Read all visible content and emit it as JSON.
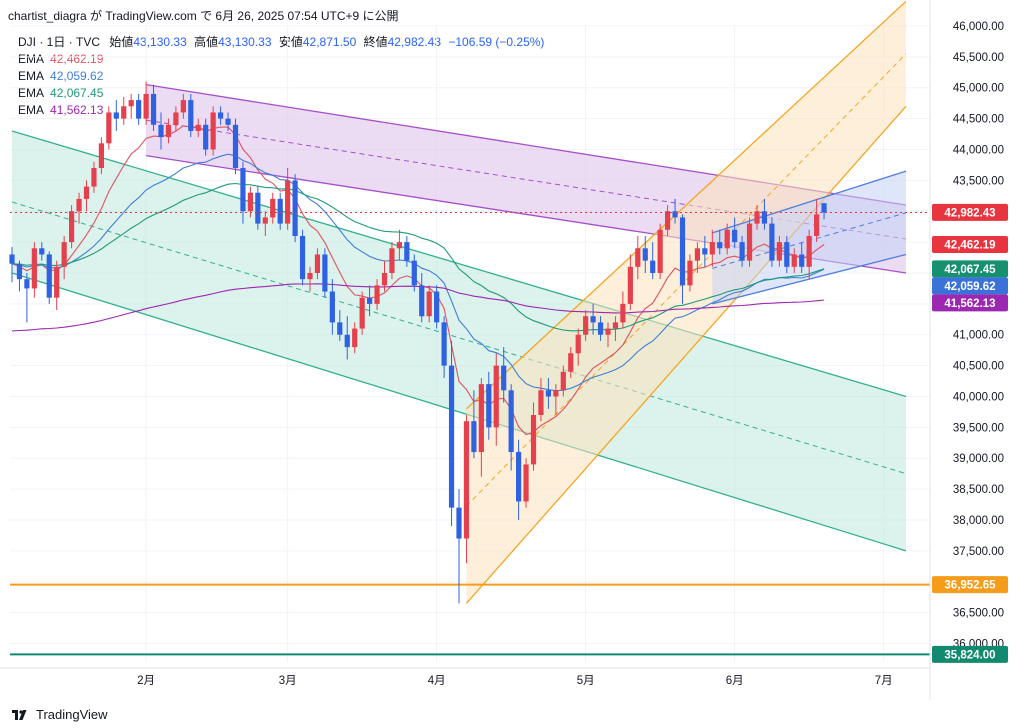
{
  "header": {
    "text": "chartist_diagra が TradingView.com で 6月 26, 2025 07:54 UTC+9 に公開"
  },
  "legend": {
    "symbol": "DJI · 1日 · TVC",
    "open_label": "始値",
    "open": "43,130.33",
    "high_label": "高値",
    "high": "43,130.33",
    "low_label": "安値",
    "low": "42,871.50",
    "close_label": "終値",
    "close": "42,982.43",
    "change": "−106.59 (−0.25%)",
    "emas": [
      {
        "label": "EMA",
        "value": "42,462.19",
        "color": "#e05262"
      },
      {
        "label": "EMA",
        "value": "42,059.62",
        "color": "#3f7fd6"
      },
      {
        "label": "EMA",
        "value": "42,067.45",
        "color": "#1f9a7a"
      },
      {
        "label": "EMA",
        "value": "41,562.13",
        "color": "#9c27b0"
      }
    ]
  },
  "footer": {
    "brand": "TradingView",
    "logo_icon": "tradingview-logo-icon"
  },
  "chart_data": {
    "type": "candlestick",
    "symbol": "DJI",
    "timeframe": "1日",
    "y_range": [
      35700,
      46000
    ],
    "y_ticks": [
      46000,
      45500,
      45000,
      44500,
      44000,
      43500,
      43000,
      42500,
      42000,
      41500,
      41000,
      40500,
      40000,
      39500,
      39000,
      38500,
      38000,
      37500,
      37000,
      36500,
      36000
    ],
    "y_tick_labels": [
      "46,000.00",
      "45,500.00",
      "45,000.00",
      "44,500.00",
      "44,000.00",
      "43,500.00",
      "43,000.00",
      "42,500.00",
      "42,000.00",
      "41,500.00",
      "41,000.00",
      "40,500.00",
      "40,000.00",
      "39,500.00",
      "39,000.00",
      "38,500.00",
      "38,000.00",
      "37,500.00",
      "37,000.00",
      "36,500.00",
      "36,000.00"
    ],
    "x_ticks": [
      {
        "label": "2月",
        "index": 18
      },
      {
        "label": "3月",
        "index": 37
      },
      {
        "label": "4月",
        "index": 57
      },
      {
        "label": "5月",
        "index": 77
      },
      {
        "label": "6月",
        "index": 97
      },
      {
        "label": "7月",
        "index": 117
      }
    ],
    "x_max_index": 120,
    "grid": true,
    "candles": [
      [
        42300,
        42420,
        41850,
        42150
      ],
      [
        42150,
        42200,
        41700,
        41900
      ],
      [
        41900,
        42000,
        41200,
        41750
      ],
      [
        41750,
        42500,
        41600,
        42400
      ],
      [
        42400,
        42500,
        42200,
        42300
      ],
      [
        42300,
        42350,
        41500,
        41600
      ],
      [
        41600,
        42200,
        41400,
        42100
      ],
      [
        42100,
        42600,
        41900,
        42500
      ],
      [
        42500,
        43100,
        42400,
        43000
      ],
      [
        43000,
        43300,
        42800,
        43200
      ],
      [
        43200,
        43500,
        43000,
        43400
      ],
      [
        43400,
        43800,
        43300,
        43700
      ],
      [
        43700,
        44200,
        43600,
        44100
      ],
      [
        44100,
        44700,
        44000,
        44600
      ],
      [
        44600,
        44800,
        44300,
        44500
      ],
      [
        44500,
        44850,
        44400,
        44700
      ],
      [
        44700,
        44900,
        44500,
        44800
      ],
      [
        44800,
        44900,
        44400,
        44500
      ],
      [
        44500,
        45100,
        44400,
        44900
      ],
      [
        44900,
        45050,
        44300,
        44400
      ],
      [
        44400,
        44600,
        44000,
        44200
      ],
      [
        44200,
        44500,
        44100,
        44400
      ],
      [
        44400,
        44700,
        44300,
        44600
      ],
      [
        44600,
        44900,
        44500,
        44800
      ],
      [
        44800,
        44900,
        44200,
        44300
      ],
      [
        44300,
        44500,
        44200,
        44400
      ],
      [
        44400,
        44500,
        43900,
        44000
      ],
      [
        44000,
        44700,
        43900,
        44600
      ],
      [
        44600,
        44700,
        44400,
        44500
      ],
      [
        44500,
        44600,
        44300,
        44400
      ],
      [
        44400,
        44500,
        43600,
        43700
      ],
      [
        43700,
        43800,
        42800,
        43000
      ],
      [
        43000,
        43400,
        42900,
        43300
      ],
      [
        43300,
        43400,
        42700,
        42800
      ],
      [
        42800,
        43000,
        42600,
        42900
      ],
      [
        42900,
        43300,
        42800,
        43200
      ],
      [
        43200,
        43300,
        42700,
        42800
      ],
      [
        42800,
        43700,
        42700,
        43500
      ],
      [
        43500,
        43600,
        42500,
        42600
      ],
      [
        42600,
        42700,
        41800,
        41900
      ],
      [
        41900,
        42100,
        41700,
        42000
      ],
      [
        42000,
        42400,
        41900,
        42300
      ],
      [
        42300,
        42400,
        41600,
        41700
      ],
      [
        41700,
        41900,
        41000,
        41200
      ],
      [
        41200,
        41400,
        40900,
        41000
      ],
      [
        41000,
        41300,
        40600,
        40800
      ],
      [
        40800,
        41200,
        40700,
        41100
      ],
      [
        41100,
        41700,
        41000,
        41600
      ],
      [
        41600,
        41800,
        41300,
        41500
      ],
      [
        41500,
        41900,
        41400,
        41800
      ],
      [
        41800,
        42200,
        41700,
        42000
      ],
      [
        42000,
        42500,
        41900,
        42400
      ],
      [
        42400,
        42700,
        42200,
        42500
      ],
      [
        42500,
        42600,
        42100,
        42200
      ],
      [
        42200,
        42300,
        41700,
        41800
      ],
      [
        41800,
        42000,
        41200,
        41300
      ],
      [
        41300,
        41800,
        41200,
        41700
      ],
      [
        41700,
        41800,
        41100,
        41200
      ],
      [
        41200,
        41300,
        40300,
        40500
      ],
      [
        40500,
        40900,
        37900,
        38200
      ],
      [
        38200,
        38500,
        36650,
        37700
      ],
      [
        37700,
        39700,
        37300,
        39600
      ],
      [
        39600,
        40100,
        39000,
        39100
      ],
      [
        39100,
        40300,
        38700,
        40200
      ],
      [
        40200,
        40400,
        39300,
        39500
      ],
      [
        39500,
        40700,
        39200,
        40500
      ],
      [
        40500,
        40800,
        39900,
        40100
      ],
      [
        40100,
        40200,
        38800,
        39100
      ],
      [
        39100,
        39300,
        38000,
        38300
      ],
      [
        38300,
        39000,
        38200,
        38900
      ],
      [
        38900,
        39900,
        38800,
        39700
      ],
      [
        39700,
        40300,
        39600,
        40100
      ],
      [
        40100,
        40300,
        39800,
        40000
      ],
      [
        40000,
        40200,
        39700,
        40100
      ],
      [
        40100,
        40500,
        40000,
        40400
      ],
      [
        40400,
        40800,
        40300,
        40700
      ],
      [
        40700,
        41100,
        40500,
        41000
      ],
      [
        41000,
        41400,
        40900,
        41300
      ],
      [
        41300,
        41500,
        41000,
        41200
      ],
      [
        41200,
        41300,
        40900,
        41000
      ],
      [
        41000,
        41200,
        40800,
        41100
      ],
      [
        41100,
        41300,
        40900,
        41200
      ],
      [
        41200,
        41700,
        41100,
        41500
      ],
      [
        41500,
        42300,
        41400,
        42100
      ],
      [
        42100,
        42600,
        41900,
        42400
      ],
      [
        42400,
        42600,
        42000,
        42200
      ],
      [
        42200,
        42500,
        41900,
        42000
      ],
      [
        42000,
        42800,
        41900,
        42700
      ],
      [
        42700,
        43100,
        42600,
        43000
      ],
      [
        43000,
        43200,
        42800,
        42900
      ],
      [
        42900,
        42950,
        41500,
        41800
      ],
      [
        41800,
        42300,
        41700,
        42200
      ],
      [
        42200,
        42500,
        42000,
        42400
      ],
      [
        42400,
        42600,
        42100,
        42300
      ],
      [
        42300,
        42700,
        42100,
        42500
      ],
      [
        42500,
        42700,
        42300,
        42400
      ],
      [
        42400,
        42800,
        42300,
        42700
      ],
      [
        42700,
        42900,
        42400,
        42500
      ],
      [
        42500,
        42600,
        42100,
        42200
      ],
      [
        42200,
        42900,
        42100,
        42800
      ],
      [
        42800,
        43100,
        42700,
        43000
      ],
      [
        43000,
        43200,
        42700,
        42800
      ],
      [
        42800,
        42900,
        42100,
        42200
      ],
      [
        42200,
        42600,
        42100,
        42500
      ],
      [
        42500,
        42600,
        42000,
        42100
      ],
      [
        42100,
        42400,
        42000,
        42300
      ],
      [
        42300,
        42500,
        42000,
        42100
      ],
      [
        42100,
        42700,
        41900,
        42600
      ],
      [
        42600,
        43200,
        42500,
        42950
      ],
      [
        43130,
        43130,
        42870,
        42980
      ]
    ],
    "emas": [
      {
        "value": 42462.19,
        "color": "#e05262"
      },
      {
        "value": 42059.62,
        "color": "#3f7fd6"
      },
      {
        "value": 42067.45,
        "color": "#1f9a7a"
      },
      {
        "value": 41562.13,
        "color": "#9c27b0"
      }
    ],
    "channels": [
      {
        "name": "",
        "fill": "#dcbfea",
        "stroke": "#a64fc9",
        "upper": [
          [
            18,
            45050
          ],
          [
            120,
            43100
          ]
        ],
        "lower": [
          [
            18,
            43900
          ],
          [
            120,
            42000
          ]
        ]
      },
      {
        "name": "",
        "fill": "#bfe8dc",
        "stroke": "#32b08f",
        "upper": [
          [
            0,
            44300
          ],
          [
            120,
            40000
          ]
        ],
        "lower": [
          [
            0,
            42000
          ],
          [
            120,
            37500
          ]
        ]
      },
      {
        "name": "",
        "fill": "#fde2bb",
        "stroke": "#f5a623",
        "upper": [
          [
            61,
            39800
          ],
          [
            120,
            46400
          ]
        ],
        "lower": [
          [
            61,
            36650
          ],
          [
            120,
            44700
          ]
        ]
      },
      {
        "name": "",
        "fill": "#c4d2f6",
        "stroke": "#4f7ee0",
        "upper": [
          [
            94,
            42650
          ],
          [
            120,
            43650
          ]
        ],
        "lower": [
          [
            94,
            41500
          ],
          [
            120,
            42300
          ]
        ]
      }
    ],
    "horizontal_lines": [
      {
        "value": 36952.65,
        "color": "#f59c1a"
      },
      {
        "value": 35824.0,
        "color": "#118a6f"
      }
    ],
    "price_labels": [
      {
        "text": "42,982.43",
        "value": 42982.43,
        "bg": "#e8343e"
      },
      {
        "text": "42,462.19",
        "value": 42462.19,
        "bg": "#e8343e"
      },
      {
        "text": "42,067.45",
        "value": 42067.45,
        "bg": "#17906f"
      },
      {
        "text": "42,059.62",
        "value": 42059.62,
        "bg": "#3a72d8"
      },
      {
        "text": "41,562.13",
        "value": 41562.13,
        "bg": "#9c27b0"
      },
      {
        "text": "36,952.65",
        "value": 36952.65,
        "bg": "#f59c1a"
      },
      {
        "text": "35,824.00",
        "value": 35824.0,
        "bg": "#118a6f"
      }
    ],
    "up_color": "#e5404d",
    "down_color": "#2e62e0"
  }
}
